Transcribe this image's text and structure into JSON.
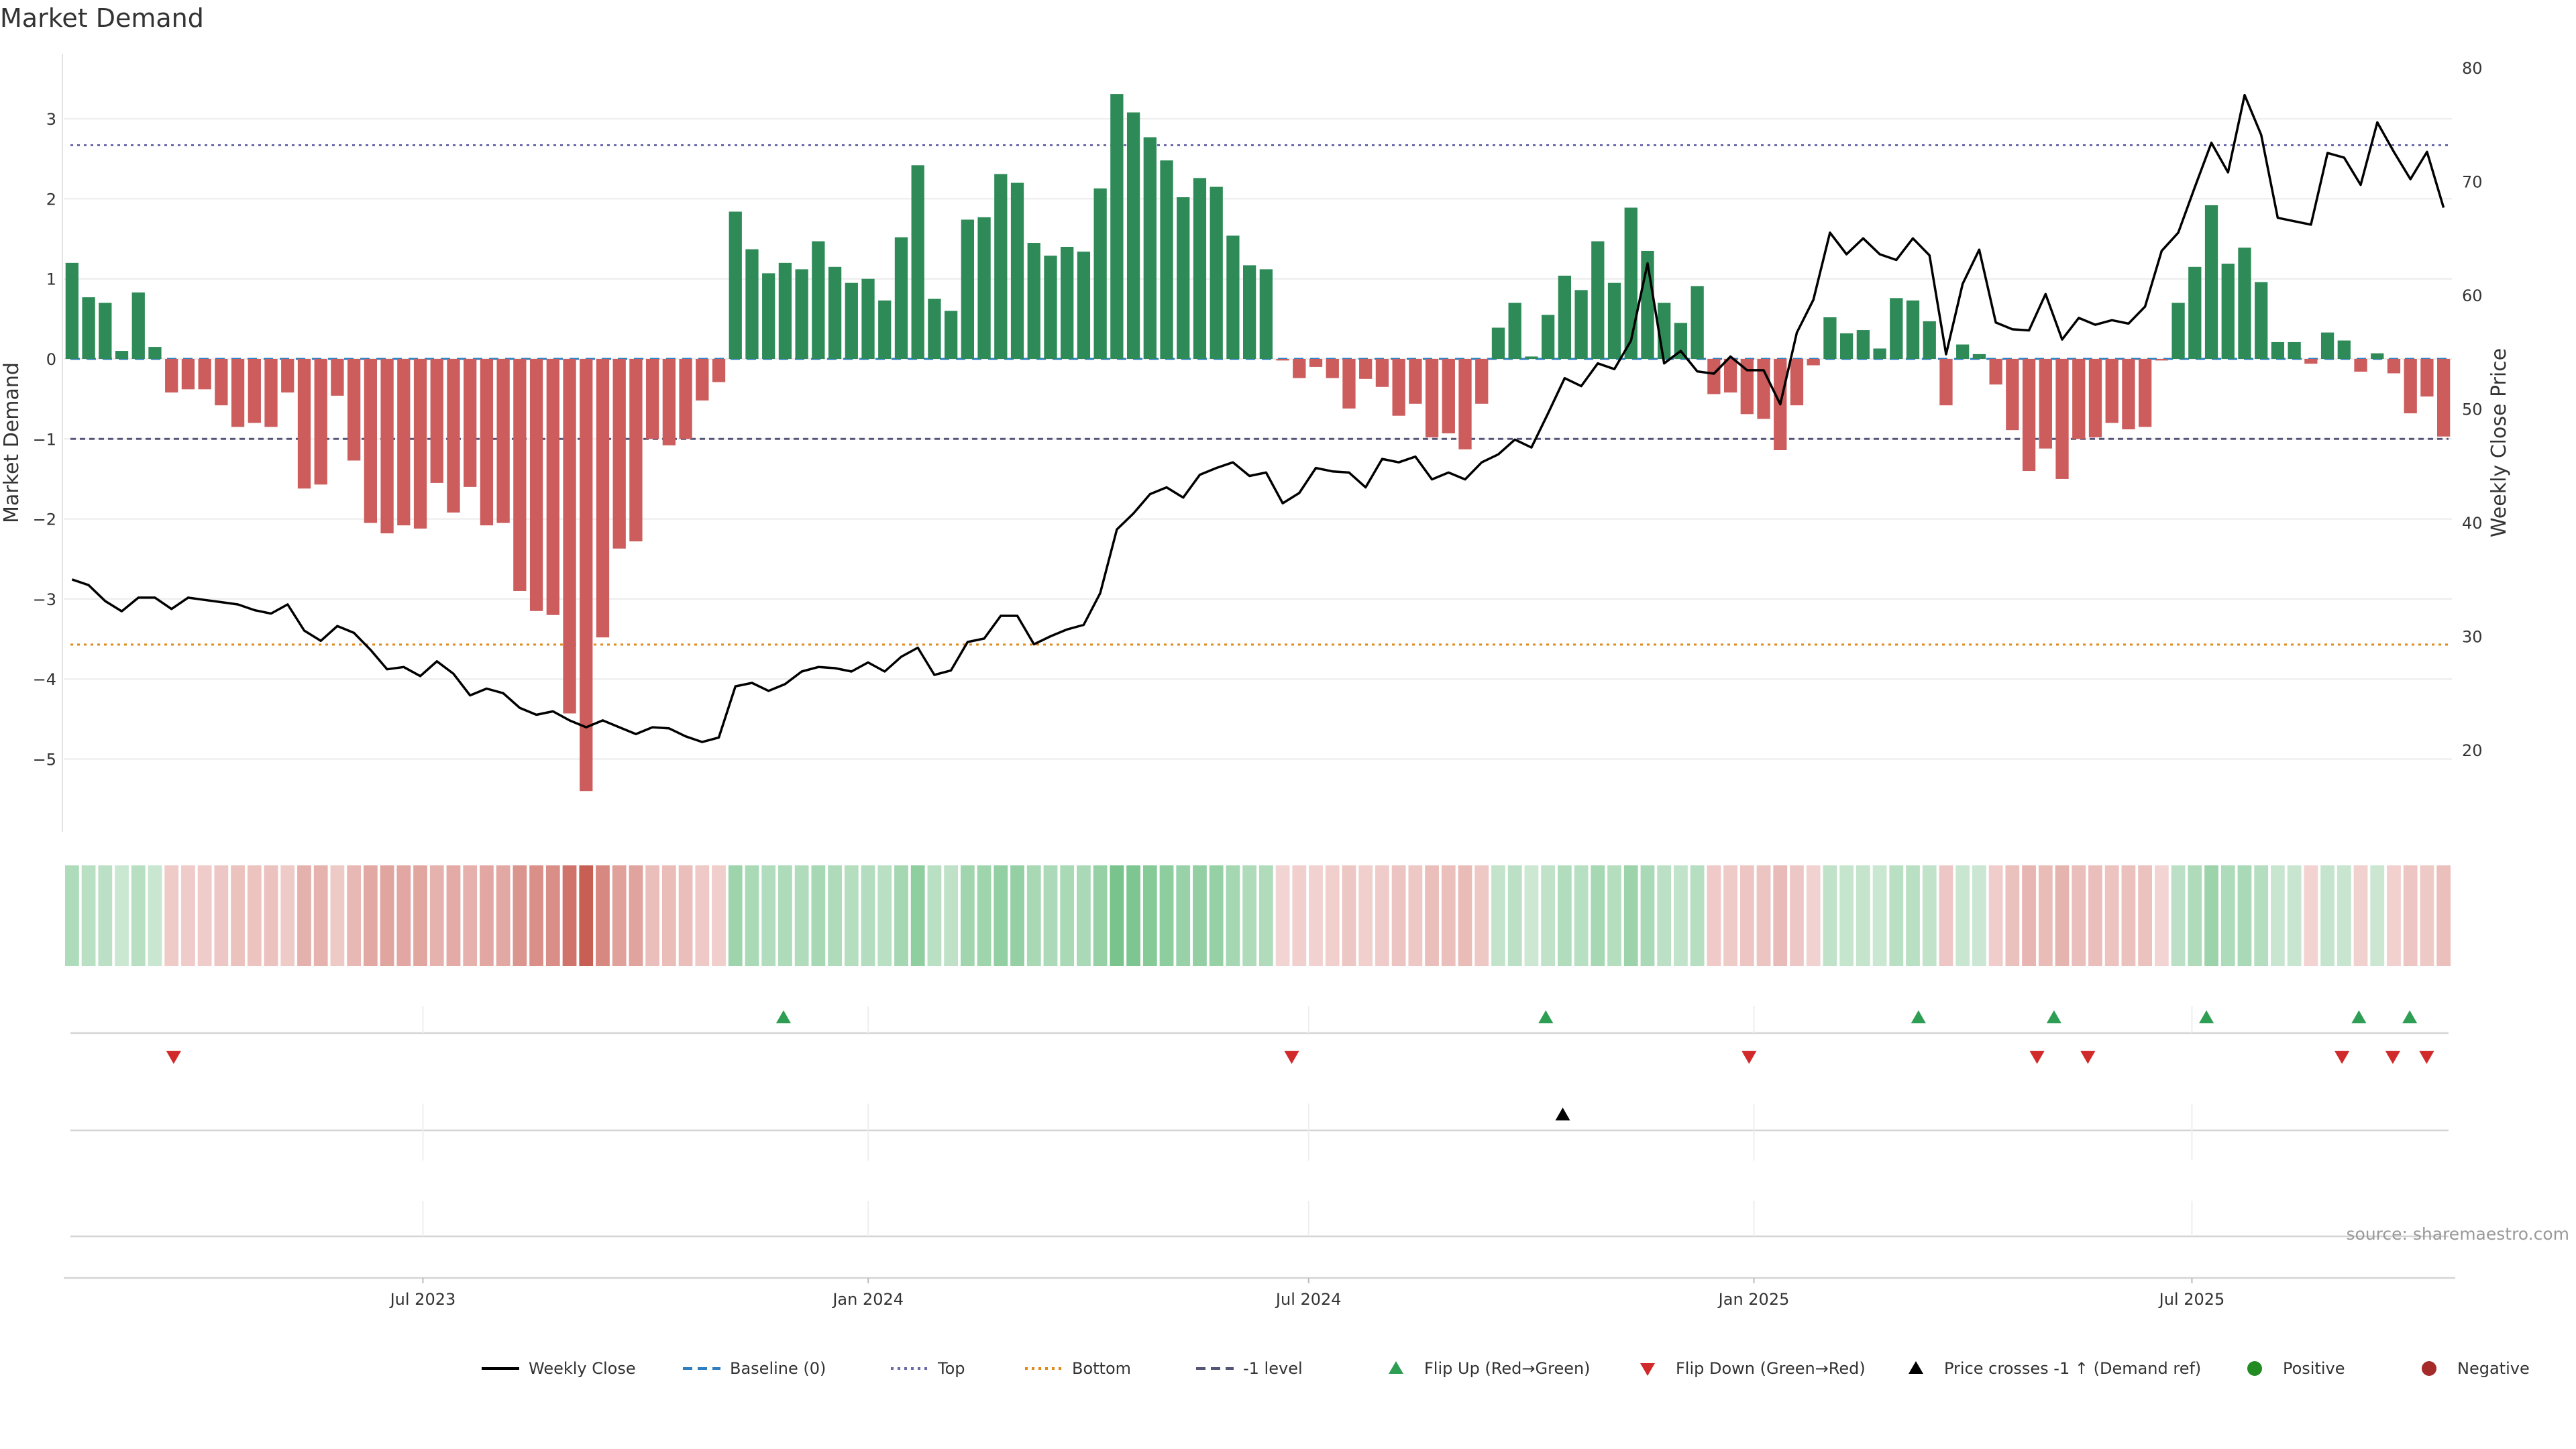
{
  "chart_data": {
    "type": "bar",
    "title": "Market Demand",
    "ylabel_left": "Market Demand",
    "ylabel_right": "Weekly Close Price",
    "ylim_left": [
      -5.9,
      3.8
    ],
    "ylim_right": [
      13,
      81
    ],
    "yticks_left": [
      3,
      2,
      1,
      0,
      -1,
      -2,
      -3,
      -4,
      -5
    ],
    "yticks_left_labels": [
      "3",
      "2",
      "1",
      "0",
      "−1",
      "−2",
      "−3",
      "−4",
      "−5"
    ],
    "yticks_right": [
      80,
      70,
      60,
      50,
      40,
      30,
      20
    ],
    "yticks_right_labels": [
      "80",
      "70",
      "60",
      "50",
      "40",
      "30",
      "20"
    ],
    "x_start_date": "2023-02-06",
    "x_end_date": "2025-10-13",
    "xticks": [
      {
        "label": "Jul 2023",
        "date": "2023-07-01"
      },
      {
        "label": "Jan 2024",
        "date": "2024-01-01"
      },
      {
        "label": "Jul 2024",
        "date": "2024-07-01"
      },
      {
        "label": "Jan 2025",
        "date": "2025-01-01"
      },
      {
        "label": "Jul 2025",
        "date": "2025-07-01"
      }
    ],
    "reference_lines": [
      {
        "name": "Top",
        "value": 2.67,
        "color": "#6a6aa8",
        "style": "dotted",
        "axis": "left"
      },
      {
        "name": "-1 level",
        "value": -1.0,
        "color": "#555577",
        "style": "dashed",
        "axis": "left"
      },
      {
        "name": "Bottom",
        "value": -3.57,
        "color": "#e08a1e",
        "style": "dotted",
        "axis": "left"
      },
      {
        "name": "Baseline (0)",
        "value": 0,
        "color": "#2f7fc0",
        "style": "dashed",
        "axis": "left"
      }
    ],
    "series": [
      {
        "name": "Market Demand",
        "kind": "bar",
        "axis": "left",
        "values": [
          1.2,
          0.77,
          0.7,
          0.1,
          0.83,
          0.15,
          -0.42,
          -0.38,
          -0.38,
          -0.58,
          -0.85,
          -0.8,
          -0.85,
          -0.42,
          -1.62,
          -1.57,
          -0.46,
          -1.27,
          -2.05,
          -2.18,
          -2.08,
          -2.12,
          -1.55,
          -1.92,
          -1.6,
          -2.08,
          -2.05,
          -2.9,
          -3.15,
          -3.2,
          -4.43,
          -5.4,
          -3.48,
          -2.37,
          -2.28,
          -1.0,
          -1.08,
          -1.0,
          -0.52,
          -0.29,
          1.84,
          1.37,
          1.07,
          1.2,
          1.12,
          1.47,
          1.15,
          0.95,
          1.0,
          0.73,
          1.52,
          2.42,
          0.75,
          0.6,
          1.74,
          1.77,
          2.31,
          2.2,
          1.45,
          1.29,
          1.4,
          1.34,
          2.13,
          3.31,
          3.08,
          2.77,
          2.48,
          2.02,
          2.26,
          2.15,
          1.54,
          1.17,
          1.12,
          -0.02,
          -0.24,
          -0.1,
          -0.24,
          -0.62,
          -0.25,
          -0.35,
          -0.71,
          -0.56,
          -0.98,
          -0.93,
          -1.13,
          -0.56,
          0.39,
          0.7,
          0.03,
          0.55,
          1.04,
          0.86,
          1.47,
          0.95,
          1.89,
          1.35,
          0.7,
          0.45,
          0.91,
          -0.44,
          -0.42,
          -0.69,
          -0.75,
          -1.14,
          -0.58,
          -0.08,
          0.52,
          0.32,
          0.36,
          0.13,
          0.76,
          0.73,
          0.47,
          -0.58,
          0.18,
          0.06,
          -0.32,
          -0.89,
          -1.4,
          -1.12,
          -1.5,
          -1.0,
          -0.98,
          -0.8,
          -0.88,
          -0.85,
          -0.02,
          0.7,
          1.15,
          1.92,
          1.19,
          1.39,
          0.96,
          0.21,
          0.21,
          -0.06,
          0.33,
          0.23,
          -0.16,
          0.07,
          -0.18,
          -0.68,
          -0.47,
          -0.97
        ]
      },
      {
        "name": "Weekly Close",
        "kind": "line",
        "axis": "right",
        "values": [
          35.0,
          34.5,
          33.1,
          32.2,
          33.4,
          33.4,
          32.4,
          33.4,
          33.2,
          33.0,
          32.8,
          32.3,
          32.0,
          32.8,
          30.5,
          29.6,
          30.9,
          30.3,
          28.8,
          27.1,
          27.3,
          26.5,
          27.8,
          26.7,
          24.8,
          25.4,
          25.0,
          23.7,
          23.1,
          23.4,
          22.6,
          22.0,
          22.6,
          22.0,
          21.4,
          22.0,
          21.9,
          21.2,
          20.7,
          21.1,
          25.6,
          25.9,
          25.2,
          25.8,
          26.9,
          27.3,
          27.2,
          26.9,
          27.7,
          26.9,
          28.2,
          29.0,
          26.6,
          27.0,
          29.5,
          29.8,
          31.8,
          31.8,
          29.3,
          30.0,
          30.6,
          31.0,
          33.8,
          39.4,
          40.8,
          42.5,
          43.1,
          42.2,
          44.2,
          44.8,
          45.3,
          44.1,
          44.4,
          41.7,
          42.6,
          44.8,
          44.5,
          44.4,
          43.1,
          45.6,
          45.3,
          45.8,
          43.8,
          44.4,
          43.8,
          45.3,
          46.0,
          47.3,
          46.6,
          49.6,
          52.7,
          52.0,
          54.0,
          53.5,
          56.0,
          62.8,
          54.0,
          55.1,
          53.3,
          53.1,
          54.6,
          53.4,
          53.4,
          50.4,
          56.7,
          59.6,
          65.5,
          63.6,
          65.0,
          63.6,
          63.1,
          65.0,
          63.5,
          54.8,
          61.0,
          64.0,
          57.6,
          57.0,
          56.9,
          60.1,
          56.1,
          58.0,
          57.4,
          57.8,
          57.5,
          59.0,
          63.9,
          65.5,
          69.5,
          73.4,
          70.8,
          77.6,
          74.1,
          66.8,
          66.5,
          66.2,
          72.5,
          72.1,
          69.7,
          75.2,
          72.6,
          70.2,
          72.6,
          67.7
        ]
      }
    ],
    "heat_strip": {
      "description": "per-week colour tiles mirroring Market Demand sign and magnitude"
    },
    "events": {
      "flip_up": [
        "2023-11-27",
        "2024-10-07",
        "2025-03-10",
        "2025-05-05",
        "2025-07-07",
        "2025-09-08",
        "2025-09-29"
      ],
      "flip_down": [
        "2023-03-20",
        "2024-06-24",
        "2024-12-30",
        "2025-04-28",
        "2025-05-19",
        "2025-09-01",
        "2025-09-22",
        "2025-10-06"
      ],
      "price_crosses_minus1": [
        "2024-10-14"
      ]
    },
    "colors": {
      "positive_bar": "#2e8b57",
      "negative_bar": "#cd5c5c",
      "line": "#000000",
      "flip_up": "#2e9e55",
      "flip_down": "#d02a2a",
      "price_cross": "#000000",
      "positive_dot": "#228b22",
      "negative_dot": "#a52a2a"
    },
    "legend": {
      "position": "bottom-center",
      "entries": [
        {
          "label": "Weekly Close",
          "marker": "line-solid",
          "color": "#000000"
        },
        {
          "label": "Baseline (0)",
          "marker": "line-dashed",
          "color": "#2f7fc0"
        },
        {
          "label": "Top",
          "marker": "line-dotted",
          "color": "#6a6aa8"
        },
        {
          "label": "Bottom",
          "marker": "line-dotted",
          "color": "#e08a1e"
        },
        {
          "label": "-1 level",
          "marker": "line-dashed",
          "color": "#555577"
        },
        {
          "label": "Flip Up (Red→Green)",
          "marker": "triangle-up",
          "color": "#2e9e55"
        },
        {
          "label": "Flip Down (Green→Red)",
          "marker": "triangle-down",
          "color": "#d02a2a"
        },
        {
          "label": "Price crosses -1 ↑ (Demand ref)",
          "marker": "triangle-up",
          "color": "#000000"
        },
        {
          "label": "Positive",
          "marker": "dot",
          "color": "#228b22"
        },
        {
          "label": "Negative",
          "marker": "dot",
          "color": "#a52a2a"
        }
      ]
    },
    "source": "source: sharemaestro.com",
    "grid": true
  }
}
